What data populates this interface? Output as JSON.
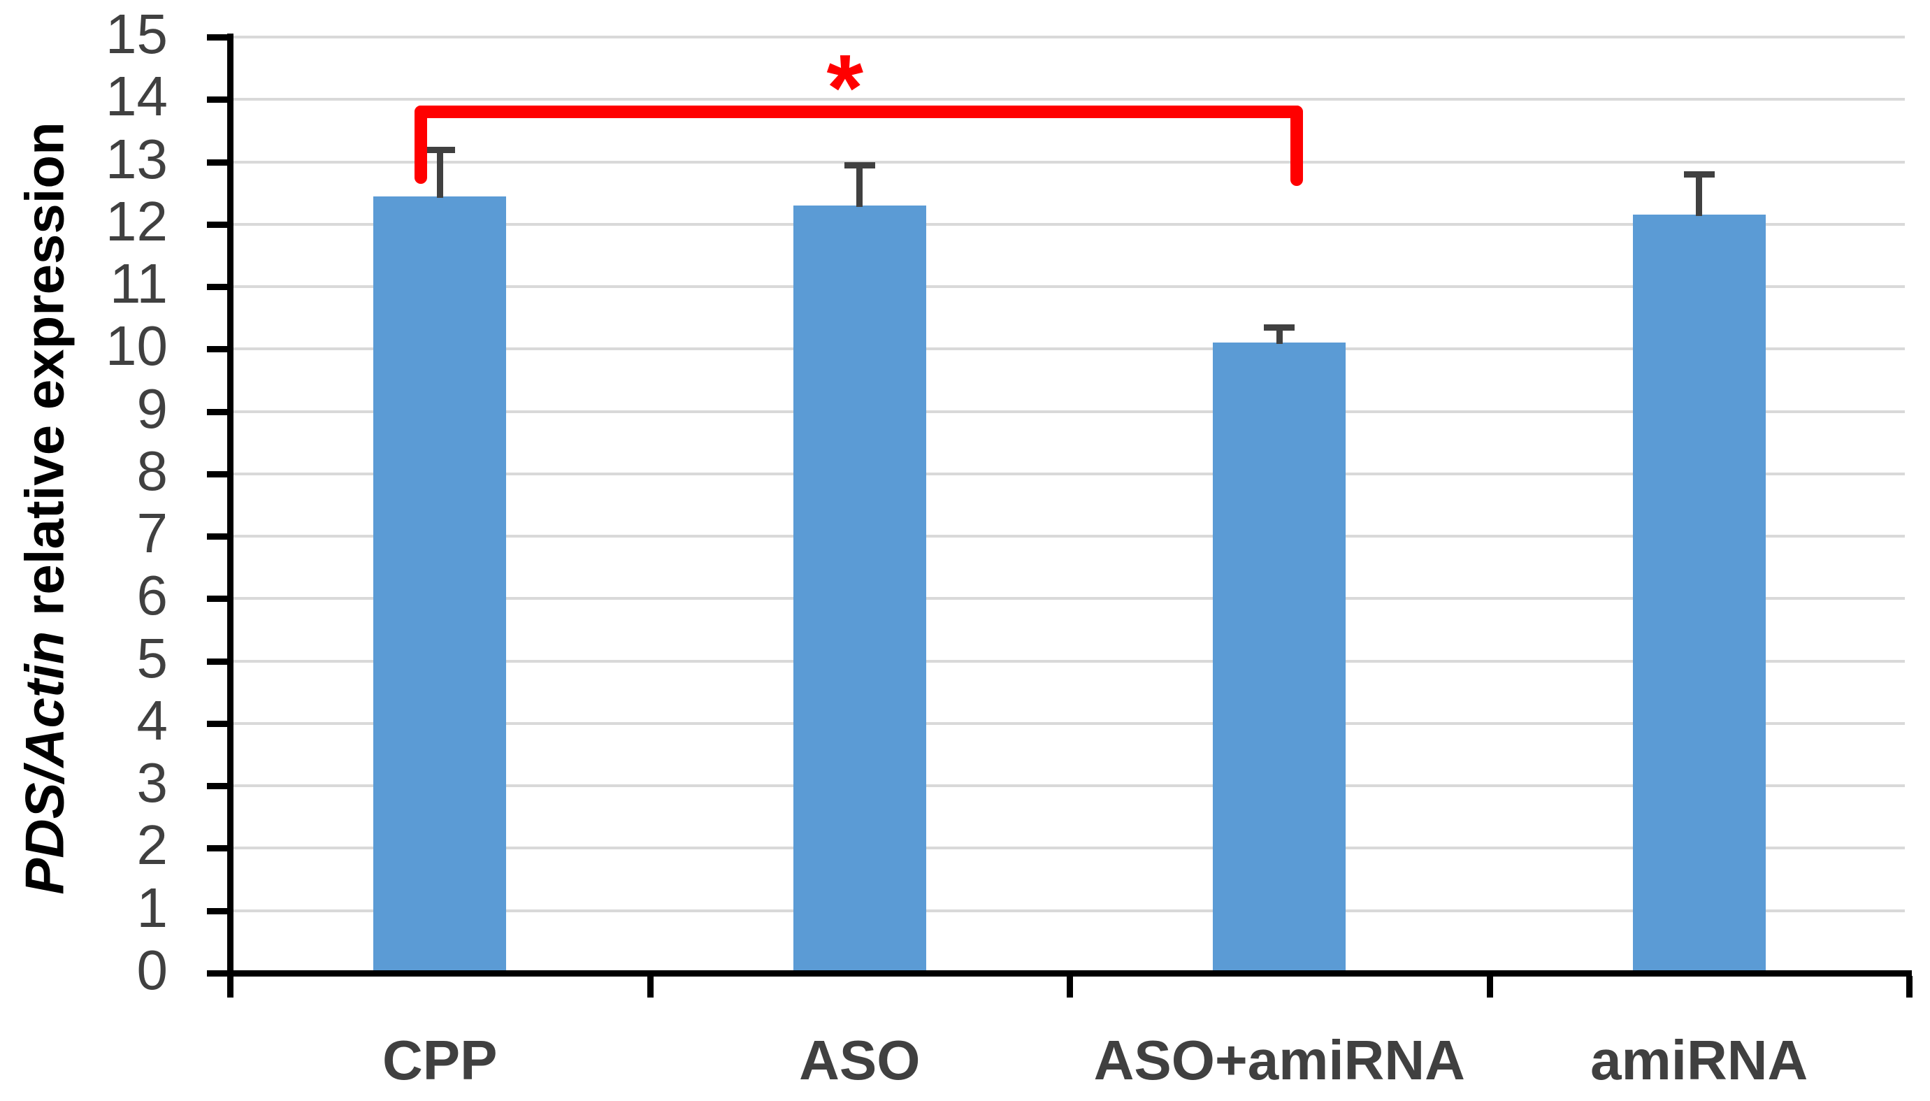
{
  "chart_data": {
    "type": "bar",
    "title": "",
    "xlabel": "",
    "ylabel": "PDS/Actin relative expression",
    "ylabel_italic_part": "PDS/Actin",
    "ylabel_regular_part": " relative expression",
    "categories": [
      "CPP",
      "ASO",
      "ASO+amiRNA",
      "amiRNA"
    ],
    "values": [
      12.45,
      12.3,
      10.1,
      12.15
    ],
    "error_bars": [
      0.75,
      0.65,
      0.25,
      0.65
    ],
    "ylim": [
      0,
      15
    ],
    "yticks": [
      0,
      1,
      2,
      3,
      4,
      5,
      6,
      7,
      8,
      9,
      10,
      11,
      12,
      13,
      14,
      15
    ],
    "grid": true,
    "legend_position": "none",
    "annotation": {
      "type": "significance-bracket",
      "from_category": "CPP",
      "to_category": "ASO+amiRNA",
      "label": "*",
      "bracket_value": 13.8,
      "leg_end_value": 12.65,
      "color": "#FF0000"
    },
    "colors": {
      "bar_fill": "#5B9BD5",
      "error_bar": "#404040",
      "gridline": "#D9D9D9",
      "axis": "#000000",
      "tick_label": "#404040",
      "category_label": "#404040",
      "annotation": "#FF0000"
    }
  }
}
